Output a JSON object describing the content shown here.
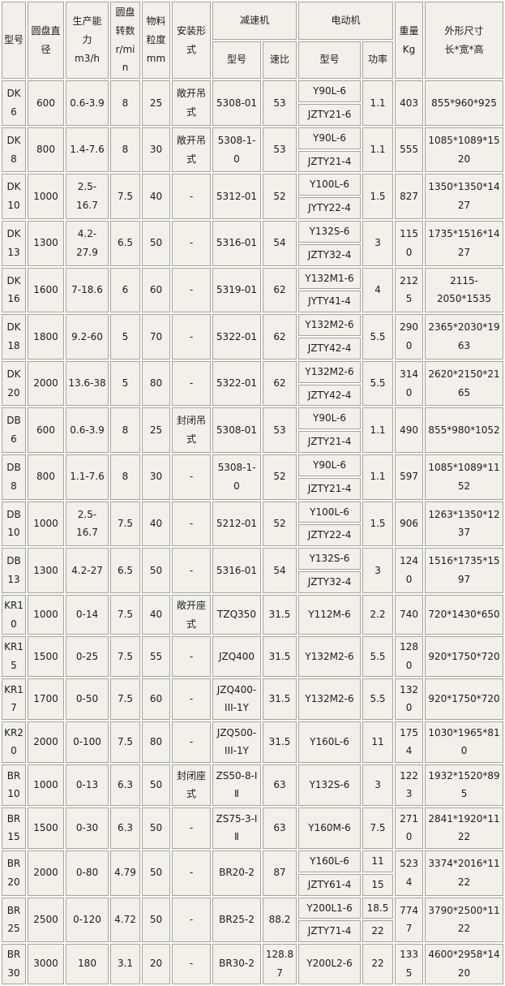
{
  "colors": {
    "cell_bg": "#f3f0e9",
    "border": "#a3a396",
    "gutter": "#ffffff",
    "text": "#1c1c1c"
  },
  "table": {
    "header": {
      "model": "型号",
      "disc_diameter": "圆盘直径",
      "capacity": "生产能力\nm3/h",
      "disc_speed": "圆盘转数\nr/min",
      "granularity": "物料粒度\nmm",
      "install": "安装形式",
      "reducer_group": "减速机",
      "motor_group": "电动机",
      "reducer_model": "型号",
      "reducer_ratio": "速比",
      "motor_model": "型号",
      "motor_power": "功率",
      "weight": "重量\nKg",
      "dims": "外形尺寸\n长*宽*高"
    },
    "rows": [
      {
        "model": "DK6",
        "diameter": "600",
        "capacity": "0.6-3.9",
        "speed": "8",
        "granularity": "25",
        "install": "敞开吊式",
        "reducer_model": "5308-01",
        "reducer_ratio": "53",
        "motors": [
          "Y90L-6",
          "JZTY21-6"
        ],
        "powers": [
          "1.1"
        ],
        "weight": "403",
        "dims": "855*960*925"
      },
      {
        "model": "DK8",
        "diameter": "800",
        "capacity": "1.4-7.6",
        "speed": "8",
        "granularity": "30",
        "install": "敞开吊式",
        "reducer_model": "5308-1-0",
        "reducer_ratio": "53",
        "motors": [
          "Y90L-6",
          "JZTY21-4"
        ],
        "powers": [
          "1.1"
        ],
        "weight": "555",
        "dims": "1085*1089*1520"
      },
      {
        "model": "DK10",
        "diameter": "1000",
        "capacity": "2.5-16.7",
        "speed": "7.5",
        "granularity": "40",
        "install": "-",
        "reducer_model": "5312-01",
        "reducer_ratio": "52",
        "motors": [
          "Y100L-6",
          "JYTY22-4"
        ],
        "powers": [
          "1.5"
        ],
        "weight": "827",
        "dims": "1350*1350*1427"
      },
      {
        "model": "DK13",
        "diameter": "1300",
        "capacity": "4.2-27.9",
        "speed": "6.5",
        "granularity": "50",
        "install": "-",
        "reducer_model": "5316-01",
        "reducer_ratio": "54",
        "motors": [
          "Y132S-6",
          "JZTY32-4"
        ],
        "powers": [
          "3"
        ],
        "weight": "1150",
        "dims": "1735*1516*1427"
      },
      {
        "model": "DK16",
        "diameter": "1600",
        "capacity": "7-18.6",
        "speed": "6",
        "granularity": "60",
        "install": "-",
        "reducer_model": "5319-01",
        "reducer_ratio": "62",
        "motors": [
          "Y132M1-6",
          "JYTY41-4"
        ],
        "powers": [
          "4"
        ],
        "weight": "2125",
        "dims": "2115-2050*1535"
      },
      {
        "model": "DK18",
        "diameter": "1800",
        "capacity": "9.2-60",
        "speed": "5",
        "granularity": "70",
        "install": "-",
        "reducer_model": "5322-01",
        "reducer_ratio": "62",
        "motors": [
          "Y132M2-6",
          "JZTY42-4"
        ],
        "powers": [
          "5.5"
        ],
        "weight": "2900",
        "dims": "2365*2030*1963"
      },
      {
        "model": "DK20",
        "diameter": "2000",
        "capacity": "13.6-38",
        "speed": "5",
        "granularity": "80",
        "install": "-",
        "reducer_model": "5322-01",
        "reducer_ratio": "62",
        "motors": [
          "Y132M2-6",
          "JZTY42-4"
        ],
        "powers": [
          "5.5"
        ],
        "weight": "3140",
        "dims": "2620*2150*2165"
      },
      {
        "model": "DB6",
        "diameter": "600",
        "capacity": "0.6-3.9",
        "speed": "8",
        "granularity": "25",
        "install": "封闭吊式",
        "reducer_model": "5308-01",
        "reducer_ratio": "53",
        "motors": [
          "Y90L-6",
          "JZTY21-4"
        ],
        "powers": [
          "1.1"
        ],
        "weight": "490",
        "dims": "855*980*1052"
      },
      {
        "model": "DB8",
        "diameter": "800",
        "capacity": "1.1-7.6",
        "speed": "8",
        "granularity": "30",
        "install": "-",
        "reducer_model": "5308-1-0",
        "reducer_ratio": "52",
        "motors": [
          "Y90L-6",
          "JZTY21-4"
        ],
        "powers": [
          "1.1"
        ],
        "weight": "597",
        "dims": "1085*1089*1152"
      },
      {
        "model": "DB10",
        "diameter": "1000",
        "capacity": "2.5-16.7",
        "speed": "7.5",
        "granularity": "40",
        "install": "-",
        "reducer_model": "5212-01",
        "reducer_ratio": "52",
        "motors": [
          "Y100L-6",
          "JZTY22-4"
        ],
        "powers": [
          "1.5"
        ],
        "weight": "906",
        "dims": "1263*1350*1237"
      },
      {
        "model": "DB13",
        "diameter": "1300",
        "capacity": "4.2-27",
        "speed": "6.5",
        "granularity": "50",
        "install": "-",
        "reducer_model": "5316-01",
        "reducer_ratio": "54",
        "motors": [
          "Y132S-6",
          "JZTY32-4"
        ],
        "powers": [
          "3"
        ],
        "weight": "1240",
        "dims": "1516*1735*1597"
      },
      {
        "model": "KR10",
        "diameter": "1000",
        "capacity": "0-14",
        "speed": "7.5",
        "granularity": "40",
        "install": "敞开座式",
        "reducer_model": "TZQ350",
        "reducer_ratio": "31.5",
        "motors": [
          "Y112M-6"
        ],
        "powers": [
          "2.2"
        ],
        "weight": "740",
        "dims": "720*1430*650"
      },
      {
        "model": "KR15",
        "diameter": "1500",
        "capacity": "0-25",
        "speed": "7.5",
        "granularity": "55",
        "install": "-",
        "reducer_model": "JZQ400",
        "reducer_ratio": "31.5",
        "motors": [
          "Y132M2-6"
        ],
        "powers": [
          "5.5"
        ],
        "weight": "1280",
        "dims": "920*1750*720"
      },
      {
        "model": "KR17",
        "diameter": "1700",
        "capacity": "0-50",
        "speed": "7.5",
        "granularity": "60",
        "install": "-",
        "reducer_model": "JZQ400-III-1Y",
        "reducer_ratio": "31.5",
        "motors": [
          "Y132M2-6"
        ],
        "powers": [
          "5.5"
        ],
        "weight": "1320",
        "dims": "920*1750*720",
        "tall": true
      },
      {
        "model": "KR20",
        "diameter": "2000",
        "capacity": "0-100",
        "speed": "7.5",
        "granularity": "80",
        "install": "-",
        "reducer_model": "JZQ500-III-1Y",
        "reducer_ratio": "31.5",
        "motors": [
          "Y160L-6"
        ],
        "powers": [
          "11"
        ],
        "weight": "1754",
        "dims": "1030*1965*810",
        "tall": true
      },
      {
        "model": "BR10",
        "diameter": "1000",
        "capacity": "0-13",
        "speed": "6.3",
        "granularity": "50",
        "install": "封闭座式",
        "reducer_model": "ZS50-8-Ⅰ Ⅱ",
        "reducer_ratio": "63",
        "motors": [
          "Y132S-6"
        ],
        "powers": [
          "3"
        ],
        "weight": "1223",
        "dims": "1932*1520*895",
        "tall": true
      },
      {
        "model": "BR15",
        "diameter": "1500",
        "capacity": "0-30",
        "speed": "6.3",
        "granularity": "50",
        "install": "-",
        "reducer_model": "ZS75-3-Ⅰ Ⅱ",
        "reducer_ratio": "63",
        "motors": [
          "Y160M-6"
        ],
        "powers": [
          "7.5"
        ],
        "weight": "2710",
        "dims": "2841*1920*1122",
        "tall": true
      },
      {
        "model": "BR20",
        "diameter": "2000",
        "capacity": "0-80",
        "speed": "4.79",
        "granularity": "50",
        "install": "-",
        "reducer_model": "BR20-2",
        "reducer_ratio": "87",
        "motors": [
          "Y160L-6",
          "JZTY61-4"
        ],
        "powers": [
          "11",
          "15"
        ],
        "weight": "5234",
        "dims": "3374*2016*1122"
      },
      {
        "model": "BR25",
        "diameter": "2500",
        "capacity": "0-120",
        "speed": "4.72",
        "granularity": "50",
        "install": "-",
        "reducer_model": "BR25-2",
        "reducer_ratio": "88.2",
        "motors": [
          "Y200L1-6",
          "JZTY71-4"
        ],
        "powers": [
          "18.5",
          "22"
        ],
        "weight": "7747",
        "dims": "3790*2500*1122"
      },
      {
        "model": "BR30",
        "diameter": "3000",
        "capacity": "180",
        "speed": "3.1",
        "granularity": "20",
        "install": "-",
        "reducer_model": "BR30-2",
        "reducer_ratio": "128.87",
        "motors": [
          "Y200L2-6"
        ],
        "powers": [
          "22"
        ],
        "weight": "1335",
        "dims": "4600*2958*1420"
      }
    ]
  }
}
